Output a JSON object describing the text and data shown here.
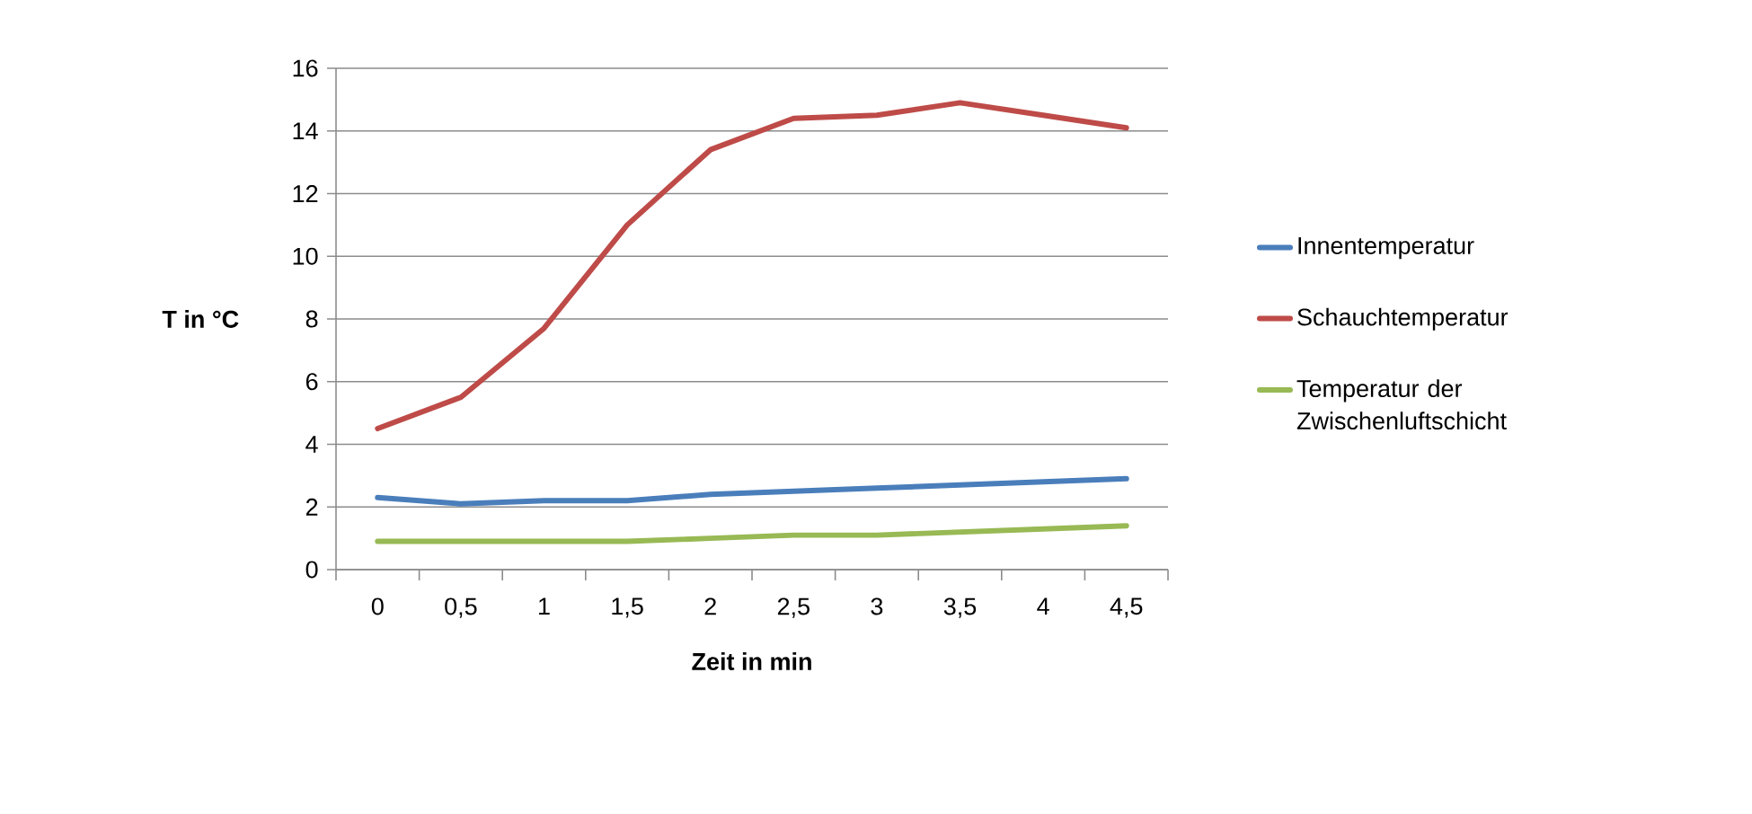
{
  "chart_data": {
    "type": "line",
    "xlabel": "Zeit in min",
    "ylabel": "T in °C",
    "categories": [
      "0",
      "0,5",
      "1",
      "1,5",
      "2",
      "2,5",
      "3",
      "3,5",
      "4",
      "4,5"
    ],
    "series": [
      {
        "name": "Innentemperatur",
        "color": "#4a7ebb",
        "values": [
          2.3,
          2.1,
          2.2,
          2.2,
          2.4,
          2.5,
          2.6,
          2.7,
          2.8,
          2.9
        ]
      },
      {
        "name": "Schauchtemperatur",
        "color": "#be4b48",
        "values": [
          4.5,
          5.5,
          7.7,
          11,
          13.4,
          14.4,
          14.5,
          14.9,
          14.5,
          14.1
        ]
      },
      {
        "name": "Temperatur der Zwischenluftschicht",
        "color": "#98b954",
        "values": [
          0.9,
          0.9,
          0.9,
          0.9,
          1.0,
          1.1,
          1.1,
          1.2,
          1.3,
          1.4
        ]
      }
    ],
    "ylim": [
      0,
      16
    ],
    "yticks": [
      0,
      2,
      4,
      6,
      8,
      10,
      12,
      14,
      16
    ],
    "grid": "y",
    "legend": "right",
    "marker": "none",
    "line_style": "solid"
  }
}
